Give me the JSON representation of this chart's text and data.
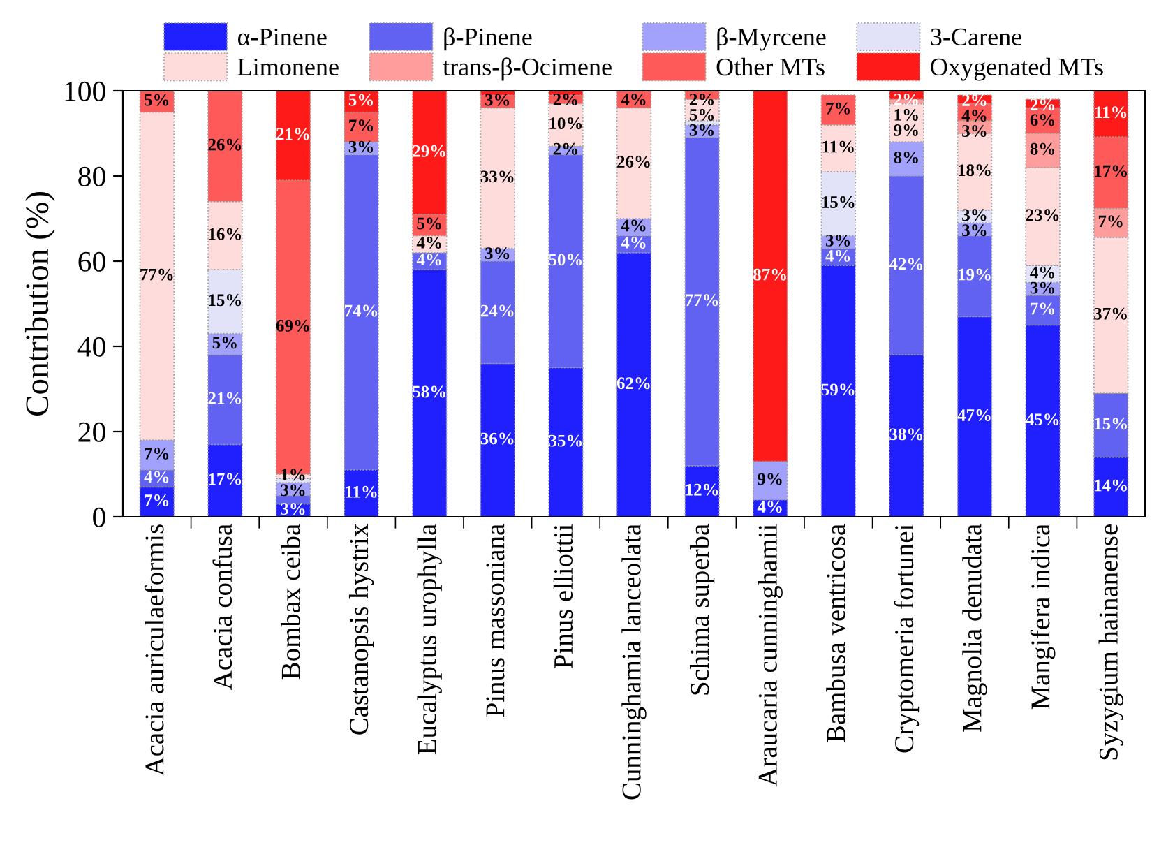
{
  "chart_data": {
    "type": "bar",
    "stacked": true,
    "ylabel": "Contribution (%)",
    "categories": [
      "Acacia auriculaeformis",
      "Acacia confusa",
      "Bombax ceiba",
      "Castanopsis hystrix",
      "Eucalyptus urophylla",
      "Pinus massoniana",
      "Pinus elliottii",
      "Cunninghamia lanceolata",
      "Schima superba",
      "Araucaria cunninghamii",
      "Bambusa ventricosa",
      "Cryptomeria fortunei",
      "Magnolia denudata",
      "Mangifera indica",
      "Syzygium hainanense"
    ],
    "ylim": [
      0,
      100
    ],
    "yticks": [
      0,
      20,
      40,
      60,
      80,
      100
    ],
    "grid": false,
    "legend": "top",
    "series": [
      {
        "name": "α-Pinene",
        "color": "#2020ff",
        "values": [
          7,
          17,
          3,
          11,
          58,
          36,
          35,
          62,
          12,
          4,
          59,
          38,
          47,
          45,
          14
        ],
        "value_labels": [
          "7%",
          "17%",
          "3%",
          "11%",
          "58%",
          "36%",
          "35%",
          "62%",
          "12%",
          "4%",
          "59%",
          "38%",
          "47%",
          "45%",
          "14%"
        ]
      },
      {
        "name": "β-Pinene",
        "color": "#6262f2",
        "values": [
          4,
          21,
          2,
          74,
          4,
          24,
          50,
          4,
          77,
          0,
          4,
          42,
          19,
          7,
          15
        ],
        "value_labels": [
          "4%",
          "21%",
          null,
          "74%",
          "4%",
          "24%",
          "50%",
          "4%",
          "77%",
          null,
          "4%",
          "42%",
          "19%",
          "7%",
          "15%"
        ]
      },
      {
        "name": "β-Myrcene",
        "color": "#a2a2fc",
        "values": [
          7,
          5,
          3,
          3,
          0,
          3,
          2,
          4,
          3,
          9,
          3,
          8,
          3,
          3,
          0
        ],
        "value_labels": [
          "7%",
          "5%",
          "3%",
          "3%",
          null,
          "3%",
          "2%",
          "4%",
          "3%",
          "9%",
          "3%",
          "8%",
          "3%",
          "3%",
          null
        ]
      },
      {
        "name": "3-Carene",
        "color": "#e2e2f8",
        "values": [
          0,
          15,
          1,
          0,
          0,
          0,
          0,
          0,
          1,
          0,
          15,
          0,
          3,
          4,
          0
        ],
        "value_labels": [
          null,
          "15%",
          null,
          null,
          null,
          null,
          null,
          null,
          null,
          null,
          "15%",
          null,
          "3%",
          "4%",
          null
        ]
      },
      {
        "name": "Limonene",
        "color": "#ffdcdc",
        "values": [
          77,
          16,
          1,
          0,
          4,
          33,
          10,
          26,
          5,
          0,
          11,
          9,
          18,
          23,
          36.6
        ],
        "value_labels": [
          "77%",
          "16%",
          "1%",
          null,
          "4%",
          "33%",
          "10%",
          "26%",
          "5%",
          null,
          "11%",
          "9%",
          "18%",
          "23%",
          "37%"
        ]
      },
      {
        "name": "trans-β-Ocimene",
        "color": "#ff9c9c",
        "values": [
          0,
          0,
          0,
          0,
          0,
          0,
          0,
          0,
          0,
          0,
          0,
          1,
          3,
          8,
          6.8
        ],
        "value_labels": [
          null,
          null,
          null,
          null,
          null,
          null,
          null,
          null,
          null,
          null,
          null,
          "1%",
          "3%",
          "8%",
          "7%"
        ]
      },
      {
        "name": "Other MTs",
        "color": "#ff5a5a",
        "values": [
          5,
          26,
          69,
          7,
          5,
          3,
          2,
          4,
          2,
          0,
          7,
          0,
          4,
          6,
          16.8
        ],
        "value_labels": [
          "5%",
          "26%",
          "69%",
          "7%",
          "5%",
          "3%",
          "2%",
          "4%",
          "2%",
          null,
          "7%",
          null,
          "4%",
          "6%",
          "17%"
        ]
      },
      {
        "name": "Oxygenated MTs",
        "color": "#ff1a1a",
        "values": [
          0,
          0,
          21,
          5,
          29,
          1,
          1,
          0,
          0,
          87,
          0,
          2,
          2,
          2,
          10.8
        ],
        "value_labels": [
          null,
          null,
          "21%",
          "5%",
          "29%",
          null,
          null,
          null,
          null,
          "87%",
          null,
          "2%",
          "2%",
          "2%",
          "11%"
        ]
      }
    ]
  }
}
